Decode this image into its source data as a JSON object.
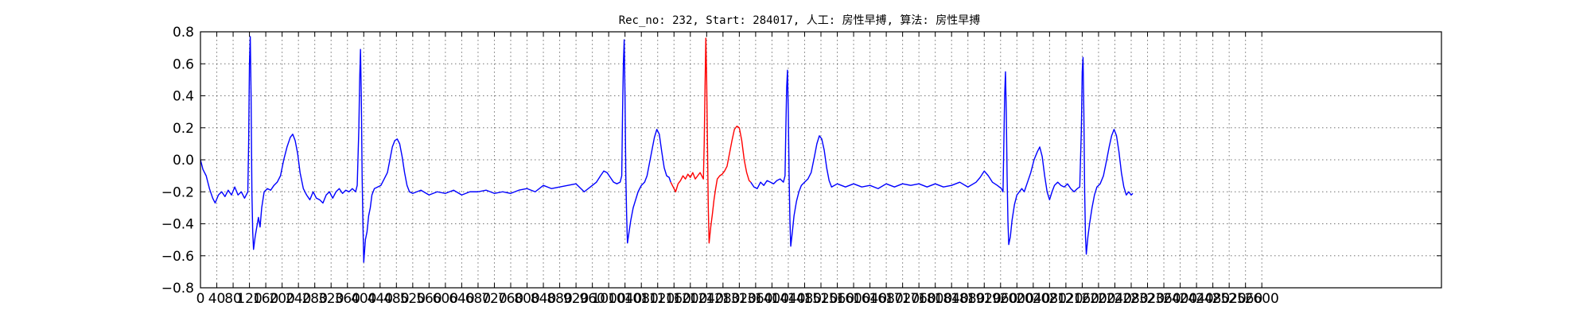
{
  "chart_data": {
    "type": "line",
    "title": "Rec_no: 232, Start: 284017, 人工: 房性早搏, 算法: 房性早搏",
    "xlabel": "",
    "ylabel": "",
    "ylim": [
      -0.8,
      0.8
    ],
    "xlim": [
      0,
      3040
    ],
    "yticks": [
      -0.8,
      -0.6,
      -0.4,
      -0.2,
      0.0,
      0.2,
      0.4,
      0.6,
      0.8
    ],
    "ytick_labels": [
      "−0.8",
      "−0.6",
      "−0.4",
      "−0.2",
      "0.0",
      "0.2",
      "0.4",
      "0.6",
      "0.8"
    ],
    "xticks": [
      0,
      40,
      80,
      120,
      160,
      200,
      240,
      280,
      320,
      360,
      400,
      440,
      480,
      520,
      560,
      600,
      640,
      680,
      720,
      760,
      800,
      840,
      880,
      920,
      960,
      1000,
      1040,
      1080,
      1120,
      1160,
      1200,
      1240,
      1280,
      1320,
      1360,
      1400,
      1440,
      1480,
      1520,
      1560,
      1600,
      1640,
      1680,
      1720,
      1760,
      1800,
      1840,
      1880,
      1920,
      1960,
      2000,
      2040,
      2080,
      2120,
      2160,
      2200,
      2240,
      2280,
      2320,
      2360,
      2400,
      2440,
      2480,
      2520,
      2560,
      2600
    ],
    "grid": true,
    "series": [
      {
        "color": "#0000ff",
        "points": [
          [
            0,
            0
          ],
          [
            6,
            -0.06
          ],
          [
            14,
            -0.1
          ],
          [
            22,
            -0.18
          ],
          [
            30,
            -0.24
          ],
          [
            36,
            -0.27
          ],
          [
            44,
            -0.22
          ],
          [
            52,
            -0.2
          ],
          [
            60,
            -0.23
          ],
          [
            68,
            -0.19
          ],
          [
            76,
            -0.22
          ],
          [
            84,
            -0.17
          ],
          [
            92,
            -0.22
          ],
          [
            100,
            -0.2
          ],
          [
            108,
            -0.24
          ],
          [
            112,
            -0.22
          ],
          [
            116,
            -0.2
          ],
          [
            118,
            0.1
          ],
          [
            120,
            0.6
          ],
          [
            122,
            0.77
          ],
          [
            124,
            0.4
          ],
          [
            126,
            -0.2
          ],
          [
            128,
            -0.45
          ],
          [
            130,
            -0.56
          ],
          [
            134,
            -0.48
          ],
          [
            138,
            -0.42
          ],
          [
            142,
            -0.36
          ],
          [
            146,
            -0.42
          ],
          [
            150,
            -0.3
          ],
          [
            156,
            -0.2
          ],
          [
            164,
            -0.18
          ],
          [
            172,
            -0.19
          ],
          [
            180,
            -0.16
          ],
          [
            188,
            -0.14
          ],
          [
            196,
            -0.1
          ],
          [
            204,
            0
          ],
          [
            212,
            0.08
          ],
          [
            220,
            0.14
          ],
          [
            226,
            0.16
          ],
          [
            232,
            0.12
          ],
          [
            238,
            0.04
          ],
          [
            244,
            -0.08
          ],
          [
            252,
            -0.18
          ],
          [
            260,
            -0.22
          ],
          [
            268,
            -0.25
          ],
          [
            276,
            -0.2
          ],
          [
            284,
            -0.24
          ],
          [
            292,
            -0.25
          ],
          [
            300,
            -0.27
          ],
          [
            308,
            -0.22
          ],
          [
            316,
            -0.2
          ],
          [
            324,
            -0.24
          ],
          [
            332,
            -0.2
          ],
          [
            340,
            -0.18
          ],
          [
            348,
            -0.21
          ],
          [
            356,
            -0.19
          ],
          [
            364,
            -0.2
          ],
          [
            372,
            -0.18
          ],
          [
            380,
            -0.2
          ],
          [
            384,
            -0.16
          ],
          [
            388,
            0.2
          ],
          [
            390,
            0.5
          ],
          [
            392,
            0.69
          ],
          [
            394,
            0.4
          ],
          [
            396,
            -0.1
          ],
          [
            398,
            -0.4
          ],
          [
            400,
            -0.64
          ],
          [
            404,
            -0.5
          ],
          [
            408,
            -0.45
          ],
          [
            412,
            -0.35
          ],
          [
            416,
            -0.3
          ],
          [
            420,
            -0.22
          ],
          [
            426,
            -0.18
          ],
          [
            434,
            -0.17
          ],
          [
            442,
            -0.16
          ],
          [
            450,
            -0.12
          ],
          [
            458,
            -0.08
          ],
          [
            464,
            0
          ],
          [
            470,
            0.08
          ],
          [
            476,
            0.12
          ],
          [
            482,
            0.13
          ],
          [
            488,
            0.1
          ],
          [
            494,
            0.02
          ],
          [
            500,
            -0.08
          ],
          [
            506,
            -0.16
          ],
          [
            512,
            -0.2
          ],
          [
            520,
            -0.21
          ],
          [
            540,
            -0.19
          ],
          [
            560,
            -0.22
          ],
          [
            580,
            -0.2
          ],
          [
            600,
            -0.21
          ],
          [
            620,
            -0.19
          ],
          [
            640,
            -0.22
          ],
          [
            660,
            -0.2
          ],
          [
            680,
            -0.2
          ],
          [
            700,
            -0.19
          ],
          [
            720,
            -0.21
          ],
          [
            740,
            -0.2
          ],
          [
            760,
            -0.21
          ],
          [
            780,
            -0.19
          ],
          [
            800,
            -0.18
          ],
          [
            820,
            -0.2
          ],
          [
            840,
            -0.16
          ],
          [
            860,
            -0.18
          ],
          [
            880,
            -0.17
          ],
          [
            900,
            -0.16
          ],
          [
            920,
            -0.15
          ],
          [
            940,
            -0.2
          ],
          [
            960,
            -0.16
          ],
          [
            970,
            -0.14
          ],
          [
            980,
            -0.1
          ],
          [
            988,
            -0.07
          ],
          [
            996,
            -0.08
          ],
          [
            1004,
            -0.11
          ],
          [
            1012,
            -0.14
          ],
          [
            1020,
            -0.15
          ],
          [
            1028,
            -0.14
          ],
          [
            1032,
            -0.1
          ],
          [
            1034,
            0.3
          ],
          [
            1036,
            0.6
          ],
          [
            1038,
            0.75
          ],
          [
            1040,
            0.4
          ],
          [
            1042,
            -0.1
          ],
          [
            1044,
            -0.35
          ],
          [
            1046,
            -0.52
          ],
          [
            1050,
            -0.45
          ],
          [
            1054,
            -0.38
          ],
          [
            1060,
            -0.3
          ],
          [
            1066,
            -0.25
          ],
          [
            1072,
            -0.2
          ],
          [
            1080,
            -0.16
          ],
          [
            1088,
            -0.14
          ],
          [
            1094,
            -0.1
          ],
          [
            1100,
            -0.02
          ],
          [
            1106,
            0.06
          ],
          [
            1112,
            0.14
          ],
          [
            1118,
            0.19
          ],
          [
            1124,
            0.16
          ],
          [
            1130,
            0.05
          ],
          [
            1136,
            -0.05
          ],
          [
            1142,
            -0.1
          ],
          [
            1148,
            -0.11
          ],
          [
            1152,
            -0.14
          ]
        ]
      },
      {
        "color": "#ff0000",
        "points": [
          [
            1152,
            -0.14
          ],
          [
            1158,
            -0.17
          ],
          [
            1164,
            -0.2
          ],
          [
            1170,
            -0.15
          ],
          [
            1176,
            -0.13
          ],
          [
            1182,
            -0.1
          ],
          [
            1188,
            -0.12
          ],
          [
            1194,
            -0.09
          ],
          [
            1200,
            -0.11
          ],
          [
            1206,
            -0.08
          ],
          [
            1212,
            -0.12
          ],
          [
            1218,
            -0.1
          ],
          [
            1224,
            -0.08
          ],
          [
            1228,
            -0.1
          ],
          [
            1232,
            -0.12
          ],
          [
            1234,
            0.1
          ],
          [
            1236,
            0.45
          ],
          [
            1238,
            0.76
          ],
          [
            1240,
            0.5
          ],
          [
            1242,
            0.1
          ],
          [
            1244,
            -0.3
          ],
          [
            1246,
            -0.52
          ],
          [
            1250,
            -0.42
          ],
          [
            1254,
            -0.34
          ],
          [
            1258,
            -0.25
          ],
          [
            1262,
            -0.18
          ],
          [
            1266,
            -0.12
          ],
          [
            1272,
            -0.1
          ],
          [
            1278,
            -0.09
          ],
          [
            1284,
            -0.07
          ],
          [
            1290,
            -0.04
          ],
          [
            1296,
            0.04
          ],
          [
            1302,
            0.12
          ],
          [
            1308,
            0.19
          ],
          [
            1314,
            0.21
          ],
          [
            1320,
            0.2
          ],
          [
            1326,
            0.12
          ],
          [
            1332,
            0.0
          ],
          [
            1338,
            -0.08
          ],
          [
            1344,
            -0.13
          ],
          [
            1348,
            -0.14
          ]
        ]
      },
      {
        "color": "#0000ff",
        "points": [
          [
            1348,
            -0.14
          ],
          [
            1356,
            -0.17
          ],
          [
            1364,
            -0.18
          ],
          [
            1372,
            -0.14
          ],
          [
            1380,
            -0.16
          ],
          [
            1388,
            -0.13
          ],
          [
            1396,
            -0.14
          ],
          [
            1404,
            -0.15
          ],
          [
            1412,
            -0.13
          ],
          [
            1420,
            -0.12
          ],
          [
            1428,
            -0.14
          ],
          [
            1432,
            -0.1
          ],
          [
            1434,
            0.2
          ],
          [
            1436,
            0.45
          ],
          [
            1438,
            0.56
          ],
          [
            1440,
            0.3
          ],
          [
            1442,
            -0.1
          ],
          [
            1444,
            -0.38
          ],
          [
            1446,
            -0.54
          ],
          [
            1450,
            -0.45
          ],
          [
            1454,
            -0.35
          ],
          [
            1460,
            -0.26
          ],
          [
            1466,
            -0.2
          ],
          [
            1472,
            -0.16
          ],
          [
            1480,
            -0.14
          ],
          [
            1488,
            -0.12
          ],
          [
            1496,
            -0.08
          ],
          [
            1504,
            0.02
          ],
          [
            1510,
            0.1
          ],
          [
            1516,
            0.15
          ],
          [
            1522,
            0.13
          ],
          [
            1528,
            0.06
          ],
          [
            1534,
            -0.05
          ],
          [
            1540,
            -0.13
          ],
          [
            1546,
            -0.17
          ],
          [
            1560,
            -0.15
          ],
          [
            1580,
            -0.17
          ],
          [
            1600,
            -0.15
          ],
          [
            1620,
            -0.17
          ],
          [
            1640,
            -0.16
          ],
          [
            1660,
            -0.18
          ],
          [
            1680,
            -0.15
          ],
          [
            1700,
            -0.17
          ],
          [
            1720,
            -0.15
          ],
          [
            1740,
            -0.16
          ],
          [
            1760,
            -0.15
          ],
          [
            1780,
            -0.17
          ],
          [
            1800,
            -0.15
          ],
          [
            1820,
            -0.17
          ],
          [
            1840,
            -0.16
          ],
          [
            1860,
            -0.14
          ],
          [
            1880,
            -0.17
          ],
          [
            1900,
            -0.14
          ],
          [
            1910,
            -0.11
          ],
          [
            1920,
            -0.07
          ],
          [
            1930,
            -0.1
          ],
          [
            1940,
            -0.14
          ],
          [
            1952,
            -0.16
          ],
          [
            1962,
            -0.18
          ],
          [
            1966,
            -0.2
          ],
          [
            1968,
            0.1
          ],
          [
            1970,
            0.4
          ],
          [
            1972,
            0.55
          ],
          [
            1974,
            0.3
          ],
          [
            1976,
            -0.1
          ],
          [
            1978,
            -0.38
          ],
          [
            1980,
            -0.53
          ],
          [
            1984,
            -0.48
          ],
          [
            1988,
            -0.38
          ],
          [
            1994,
            -0.28
          ],
          [
            2000,
            -0.22
          ],
          [
            2006,
            -0.2
          ],
          [
            2012,
            -0.18
          ],
          [
            2018,
            -0.2
          ],
          [
            2026,
            -0.14
          ],
          [
            2034,
            -0.08
          ],
          [
            2042,
            0
          ],
          [
            2050,
            0.05
          ],
          [
            2056,
            0.08
          ],
          [
            2062,
            0.02
          ],
          [
            2068,
            -0.1
          ],
          [
            2074,
            -0.2
          ],
          [
            2080,
            -0.25
          ],
          [
            2086,
            -0.2
          ],
          [
            2092,
            -0.16
          ],
          [
            2100,
            -0.14
          ],
          [
            2108,
            -0.16
          ],
          [
            2116,
            -0.17
          ],
          [
            2124,
            -0.15
          ],
          [
            2132,
            -0.18
          ],
          [
            2140,
            -0.2
          ],
          [
            2148,
            -0.18
          ],
          [
            2154,
            -0.17
          ],
          [
            2158,
            0.2
          ],
          [
            2160,
            0.55
          ],
          [
            2162,
            0.64
          ],
          [
            2164,
            0.3
          ],
          [
            2166,
            -0.2
          ],
          [
            2168,
            -0.48
          ],
          [
            2170,
            -0.59
          ],
          [
            2174,
            -0.48
          ],
          [
            2178,
            -0.4
          ],
          [
            2184,
            -0.3
          ],
          [
            2190,
            -0.22
          ],
          [
            2196,
            -0.17
          ],
          [
            2204,
            -0.15
          ],
          [
            2212,
            -0.1
          ],
          [
            2220,
            0.0
          ],
          [
            2226,
            0.08
          ],
          [
            2232,
            0.15
          ],
          [
            2238,
            0.19
          ],
          [
            2244,
            0.15
          ],
          [
            2250,
            0.05
          ],
          [
            2256,
            -0.08
          ],
          [
            2262,
            -0.17
          ],
          [
            2268,
            -0.22
          ],
          [
            2274,
            -0.2
          ],
          [
            2280,
            -0.22
          ],
          [
            2284,
            -0.21
          ]
        ]
      }
    ]
  }
}
